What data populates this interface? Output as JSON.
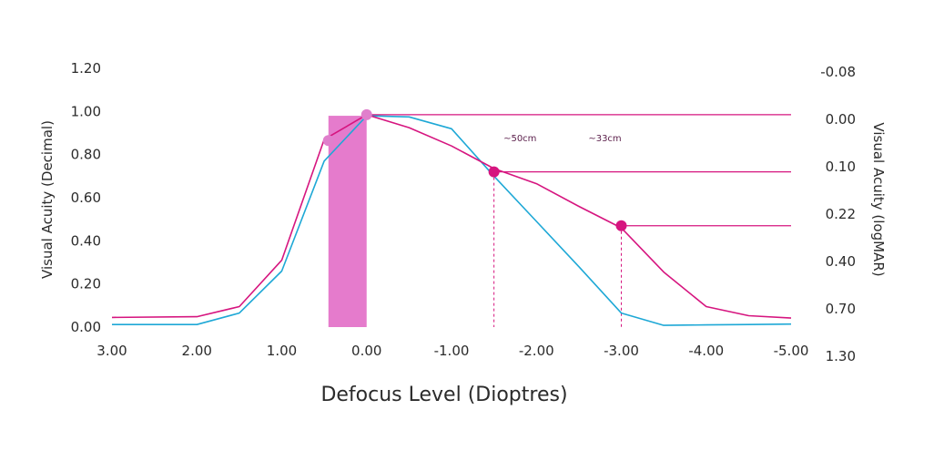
{
  "chart_data": {
    "type": "line",
    "title": "",
    "xlabel": "Defocus Level  (Dioptres)",
    "ylabel": "Visual Acuity (Decimal)",
    "y2label": "Visual Acuity (logMAR)",
    "xlim": [
      3.0,
      -5.0
    ],
    "ylim": [
      0,
      1.2
    ],
    "x_ticks": [
      "3.00",
      "2.00",
      "1.00",
      "0.00",
      "-1.00",
      "-2.00",
      "-3.00",
      "-4.00",
      "-5.00"
    ],
    "y_ticks": [
      "0.00",
      "0.20",
      "0.40",
      "0.60",
      "0.80",
      "1.00",
      "1.20"
    ],
    "y2_ticks": [
      "-0.08",
      "0.00",
      "0.10",
      "0.22",
      "0.40",
      "0.70",
      "1.30"
    ],
    "colors": {
      "magenta": "#d6157f",
      "blue": "#1ea8d6",
      "highlight": "#e57bcc",
      "point_light": "#e07fcc"
    },
    "series": [
      {
        "color": "magenta",
        "x": [
          3.0,
          2.0,
          1.5,
          1.0,
          0.5,
          0.0,
          -0.5,
          -1.0,
          -1.5,
          -2.0,
          -2.5,
          -3.0,
          -3.5,
          -4.0,
          -4.5,
          -5.0
        ],
        "y": [
          0.045,
          0.048,
          0.095,
          0.31,
          0.87,
          0.985,
          0.925,
          0.84,
          0.735,
          0.665,
          0.56,
          0.46,
          0.255,
          0.095,
          0.053,
          0.042
        ]
      },
      {
        "color": "blue",
        "x": [
          3.0,
          2.0,
          1.5,
          1.0,
          0.5,
          0.0,
          -0.5,
          -1.0,
          -1.5,
          -2.0,
          -2.5,
          -3.0,
          -3.5,
          -4.0,
          -4.5,
          -5.0
        ],
        "y": [
          0.012,
          0.012,
          0.065,
          0.26,
          0.77,
          0.98,
          0.975,
          0.92,
          0.7,
          0.49,
          0.28,
          0.065,
          0.008,
          0.01,
          0.012,
          0.014
        ]
      }
    ],
    "highlight_band": {
      "x0": 0.45,
      "x1": 0.0,
      "y0": 0.0,
      "y1": 0.98
    },
    "reference_lines": [
      {
        "y": 0.985,
        "x_from": 0.0,
        "x_to": -5.0
      },
      {
        "y": 0.72,
        "x_from": -1.5,
        "x_to": -5.0
      },
      {
        "y": 0.47,
        "x_from": -3.0,
        "x_to": -5.0
      }
    ],
    "markers": [
      {
        "x": 0.45,
        "y": 0.865,
        "color": "point_light"
      },
      {
        "x": 0.0,
        "y": 0.985,
        "color": "point_light"
      },
      {
        "x": -1.5,
        "y": 0.72,
        "color": "magenta"
      },
      {
        "x": -3.0,
        "y": 0.47,
        "color": "magenta"
      }
    ],
    "vertical_guides": [
      {
        "x": -1.5,
        "y_top": 0.72
      },
      {
        "x": -3.0,
        "y_top": 0.47
      }
    ],
    "annotations": [
      {
        "text": "~50cm",
        "x": -2.0,
        "y": 0.85
      },
      {
        "text": "~33cm",
        "x": -3.0,
        "y": 0.85
      }
    ],
    "grid": false,
    "legend": "none"
  }
}
